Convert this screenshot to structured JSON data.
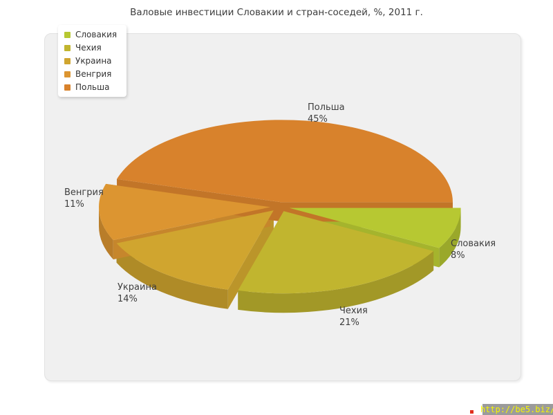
{
  "chart_data": {
    "type": "pie",
    "style": "3d-exploded",
    "title": "Валовые инвестиции Словакии и стран-соседей, %, 2011 г.",
    "categories": [
      "Словакия",
      "Чехия",
      "Украина",
      "Венгрия",
      "Польша"
    ],
    "values": [
      8,
      21,
      14,
      11,
      45
    ],
    "value_labels": [
      "8%",
      "21%",
      "14%",
      "11%",
      "45%"
    ],
    "unit": "%",
    "colors": [
      "#b7c832",
      "#c1b52f",
      "#d0a52f",
      "#dc9531",
      "#d8822c"
    ],
    "legend_position": "top-left",
    "start_angle_deg": 0,
    "direction": "clockwise"
  },
  "watermark": {
    "url_text": "http://be5.biz/",
    "background": "#9b9b9b",
    "text_color": "#f6f600"
  },
  "panel_background": "#f0f0f0"
}
